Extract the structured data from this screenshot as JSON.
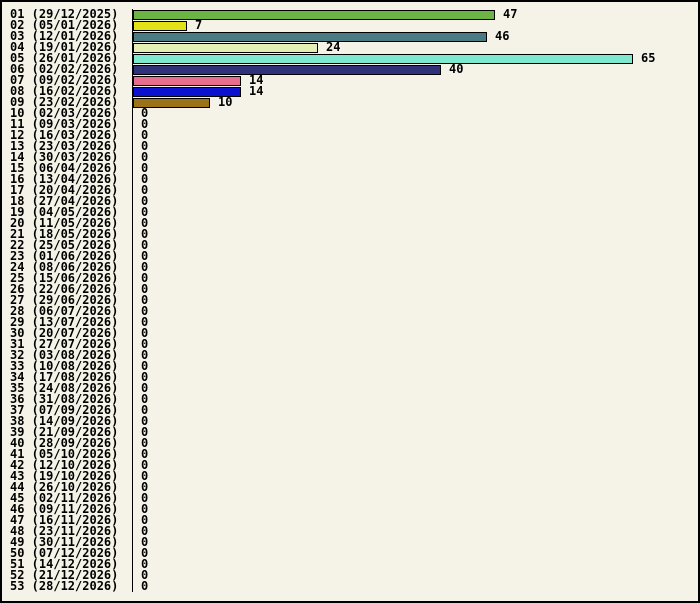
{
  "window": {
    "background": "#f5f3e8",
    "border_color": "#000000",
    "text_color": "#000000"
  },
  "chart_data": {
    "type": "bar",
    "orientation": "horizontal",
    "title": "",
    "xlabel": "",
    "ylabel": "",
    "xlim": [
      0,
      65
    ],
    "grid": false,
    "legend": false,
    "value_labels": true,
    "axis_color": "#000000",
    "categories": [
      "01 (29/12/2025)",
      "02 (05/01/2026)",
      "03 (12/01/2026)",
      "04 (19/01/2026)",
      "05 (26/01/2026)",
      "06 (02/02/2026)",
      "07 (09/02/2026)",
      "08 (16/02/2026)",
      "09 (23/02/2026)",
      "10 (02/03/2026)",
      "11 (09/03/2026)",
      "12 (16/03/2026)",
      "13 (23/03/2026)",
      "14 (30/03/2026)",
      "15 (06/04/2026)",
      "16 (13/04/2026)",
      "17 (20/04/2026)",
      "18 (27/04/2026)",
      "19 (04/05/2026)",
      "20 (11/05/2026)",
      "21 (18/05/2026)",
      "22 (25/05/2026)",
      "23 (01/06/2026)",
      "24 (08/06/2026)",
      "25 (15/06/2026)",
      "26 (22/06/2026)",
      "27 (29/06/2026)",
      "28 (06/07/2026)",
      "29 (13/07/2026)",
      "30 (20/07/2026)",
      "31 (27/07/2026)",
      "32 (03/08/2026)",
      "33 (10/08/2026)",
      "34 (17/08/2026)",
      "35 (24/08/2026)",
      "36 (31/08/2026)",
      "37 (07/09/2026)",
      "38 (14/09/2026)",
      "39 (21/09/2026)",
      "40 (28/09/2026)",
      "41 (05/10/2026)",
      "42 (12/10/2026)",
      "43 (19/10/2026)",
      "44 (26/10/2026)",
      "45 (02/11/2026)",
      "46 (09/11/2026)",
      "47 (16/11/2026)",
      "48 (23/11/2026)",
      "49 (30/11/2026)",
      "50 (07/12/2026)",
      "51 (14/12/2026)",
      "52 (21/12/2026)",
      "53 (28/12/2026)"
    ],
    "values": [
      47,
      7,
      46,
      24,
      65,
      40,
      14,
      14,
      10,
      0,
      0,
      0,
      0,
      0,
      0,
      0,
      0,
      0,
      0,
      0,
      0,
      0,
      0,
      0,
      0,
      0,
      0,
      0,
      0,
      0,
      0,
      0,
      0,
      0,
      0,
      0,
      0,
      0,
      0,
      0,
      0,
      0,
      0,
      0,
      0,
      0,
      0,
      0,
      0,
      0,
      0,
      0,
      0
    ],
    "bar_colors": [
      "#6cb545",
      "#e3e118",
      "#4a7b85",
      "#e3efb3",
      "#7fe9cf",
      "#2f3278",
      "#e76d8e",
      "#0b12cf",
      "#9b7217"
    ]
  }
}
